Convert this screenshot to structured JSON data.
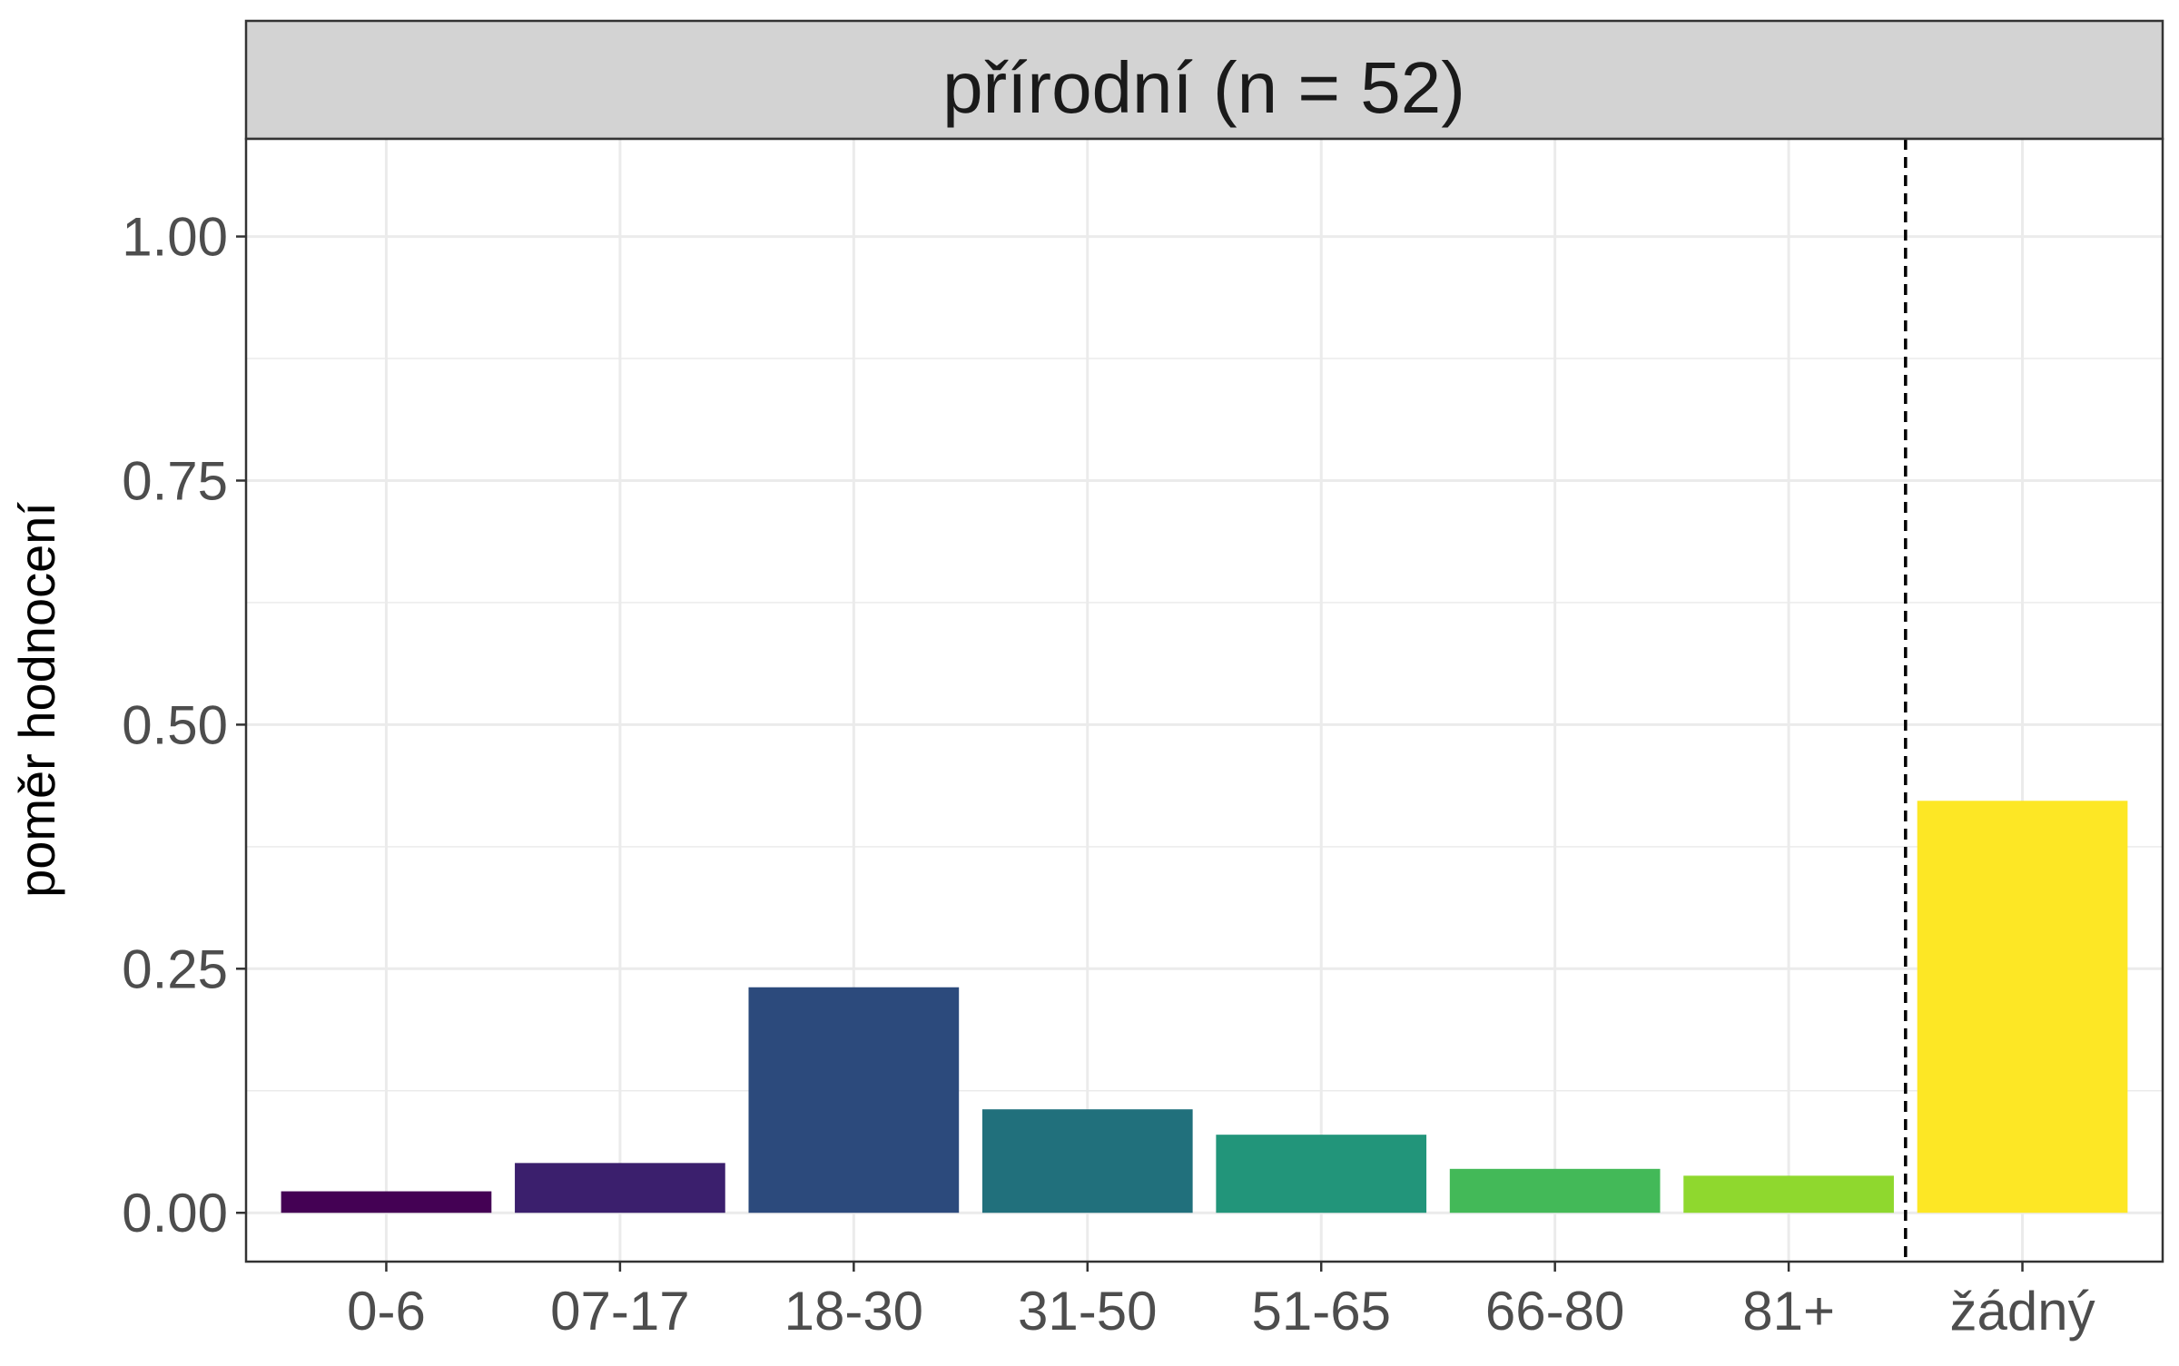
{
  "chart_data": {
    "type": "bar",
    "facet_label": "přírodní (n = 52)",
    "title": "",
    "xlabel": "",
    "ylabel": "poměr hodnocení",
    "categories": [
      "0-6",
      "07-17",
      "18-30",
      "31-50",
      "51-65",
      "66-80",
      "81+",
      "žádný"
    ],
    "values": [
      0.022,
      0.051,
      0.231,
      0.106,
      0.08,
      0.045,
      0.038,
      0.422
    ],
    "colors": [
      "#440154",
      "#3b1f6d",
      "#2c4a7c",
      "#21707c",
      "#22957a",
      "#43b958",
      "#8fd82e",
      "#fde725"
    ],
    "ylim": [
      -0.05,
      1.1
    ],
    "yticks": [
      0.0,
      0.25,
      0.5,
      0.75,
      1.0
    ],
    "ytick_labels": [
      "0.00",
      "0.25",
      "0.50",
      "0.75",
      "1.00"
    ],
    "minor_gridlines": [
      0.125,
      0.375,
      0.625,
      0.875
    ],
    "grid": true,
    "separator_line": {
      "between": [
        "81+",
        "žádný"
      ],
      "style": "dashed"
    },
    "theme": {
      "strip_fill": "#d3d3d3",
      "panel_border": "#333333",
      "grid_color": "#ebebeb",
      "tick_text_color": "#4d4d4d",
      "axis_title_color": "#000000"
    }
  }
}
